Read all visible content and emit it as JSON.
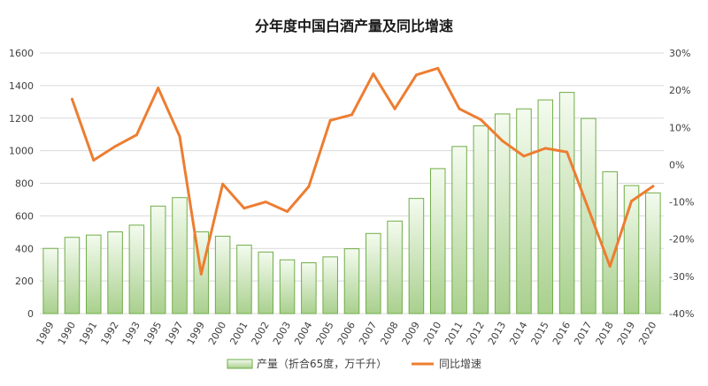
{
  "chart_data": {
    "type": "bar",
    "title": "分年度中国白酒产量及同比增速",
    "categories": [
      "1989",
      "1990",
      "1991",
      "1992",
      "1993",
      "1995",
      "1997",
      "1999",
      "2000",
      "2001",
      "2002",
      "2003",
      "2004",
      "2005",
      "2006",
      "2007",
      "2008",
      "2009",
      "2010",
      "2011",
      "2012",
      "2013",
      "2014",
      "2015",
      "2016",
      "2017",
      "2018",
      "2019",
      "2020"
    ],
    "series": [
      {
        "name": "产量（折合65度，万千升）",
        "type": "bar",
        "axis": "left",
        "values": [
          400,
          468,
          482,
          502,
          543,
          660,
          712,
          502,
          475,
          420,
          378,
          330,
          312,
          348,
          398,
          492,
          568,
          707,
          890,
          1026,
          1153,
          1226,
          1257,
          1312,
          1358,
          1198,
          871,
          786,
          741
        ]
      },
      {
        "name": "同比增速",
        "type": "line",
        "axis": "right",
        "values": [
          null,
          17.6,
          1.2,
          4.9,
          8.0,
          20.6,
          7.6,
          -29.4,
          -5.2,
          -11.7,
          -10.0,
          -12.6,
          -5.9,
          11.9,
          13.4,
          24.4,
          15.0,
          24.1,
          25.9,
          15.0,
          12.1,
          6.4,
          2.3,
          4.4,
          3.4,
          -11.9,
          -27.3,
          -9.8,
          -5.8
        ]
      }
    ],
    "y_left": {
      "min": 0,
      "max": 1600,
      "step": 200,
      "ticks": [
        "0",
        "200",
        "400",
        "600",
        "800",
        "1000",
        "1200",
        "1400",
        "1600"
      ]
    },
    "y_right": {
      "min": -40,
      "max": 30,
      "step": 10,
      "ticks": [
        "-40%",
        "-30%",
        "-20%",
        "-10%",
        "0%",
        "10%",
        "20%",
        "30%"
      ]
    },
    "grid": true,
    "legend_position": "bottom",
    "colors": {
      "bar_fill_top": "#f4fbef",
      "bar_fill_bottom": "#a9d08e",
      "bar_stroke": "#70ad47",
      "line": "#ed7d31"
    }
  }
}
